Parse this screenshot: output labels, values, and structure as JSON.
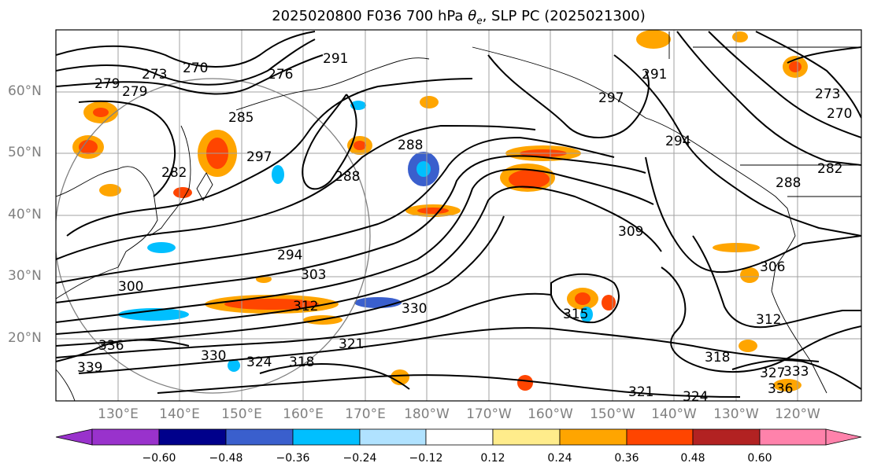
{
  "title": {
    "prefix": "2025020800 F036 700 hPa ",
    "symbol": "θ",
    "subscript": "e",
    "suffix": ", SLP PC (2025021300)"
  },
  "lat_labels": [
    "60°N",
    "50°N",
    "40°N",
    "30°N",
    "20°N"
  ],
  "lon_labels": [
    "130°E",
    "140°E",
    "150°E",
    "160°E",
    "170°E",
    "180°W",
    "170°W",
    "160°W",
    "150°W",
    "140°W",
    "130°W",
    "120°W"
  ],
  "colorbar": {
    "ticks": [
      "−0.60",
      "−0.48",
      "−0.36",
      "−0.24",
      "−0.12",
      "0.12",
      "0.24",
      "0.36",
      "0.48",
      "0.60"
    ],
    "colors": [
      "#9932cc",
      "#00008b",
      "#3a5fcd",
      "#00bfff",
      "#b0e2ff",
      "#ffffff",
      "#ffec8b",
      "#ffa500",
      "#ff4500",
      "#b22222",
      "#ff82ab"
    ]
  },
  "contour_labels": [
    "270",
    "273",
    "276",
    "279",
    "279",
    "282",
    "285",
    "288",
    "288",
    "291",
    "291",
    "294",
    "294",
    "297",
    "297",
    "300",
    "303",
    "306",
    "309",
    "312",
    "312",
    "315",
    "318",
    "318",
    "321",
    "321",
    "324",
    "324",
    "327",
    "330",
    "330",
    "333",
    "336",
    "336",
    "339",
    "282",
    "288",
    "270",
    "273"
  ],
  "map_data": {
    "projection": "cylindrical",
    "lon_range": [
      "120°E",
      "115°W"
    ],
    "lat_range": [
      "10°N",
      "70°N"
    ],
    "contour_field": "700 hPa theta-e (K)",
    "contour_interval": 3,
    "shaded_field": "SLP PC",
    "grid": true
  }
}
